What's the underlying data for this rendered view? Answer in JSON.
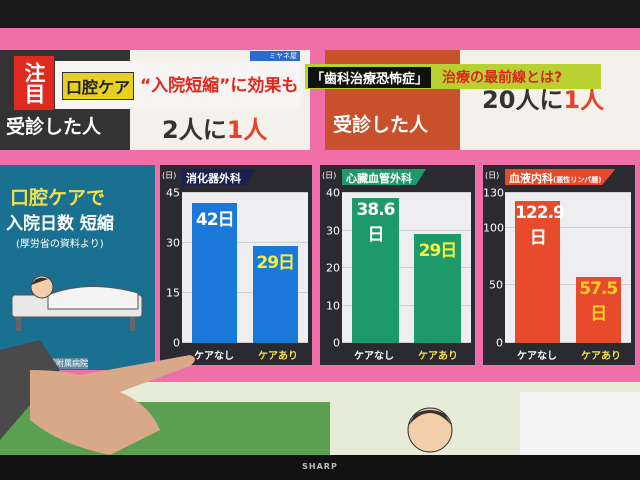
{
  "tv_brand": "SHARP",
  "top_band": {
    "left_text": "受診した人",
    "left_value_a": "2人に",
    "left_value_b": "1人",
    "right_text": "受診した人",
    "right_value_a": "20人に",
    "right_value_b": "1人"
  },
  "caption": {
    "badge": "注目",
    "keyword": "口腔ケア",
    "headline": "“入院短縮”に効果も",
    "show_logo": "ミヤネ屋",
    "topic_box": "「歯科治療恐怖症」",
    "topic_text": "治療の最前線とは?"
  },
  "side_panel": {
    "line1": "口腔ケアで",
    "line2": "入院日数 短縮",
    "source": "(厚労省の資料より)",
    "footer": "学部附属病院"
  },
  "colors": {
    "blue": "#1a78d8",
    "green": "#1e9a6a",
    "red": "#e84a2c",
    "teal": "#1a7090"
  },
  "chart_data": [
    {
      "type": "bar",
      "title": "消化器外科",
      "unit": "(日)",
      "ylim": [
        0,
        45
      ],
      "yticks": [
        0,
        15,
        30,
        45
      ],
      "categories": [
        "ケアなし",
        "ケアあり"
      ],
      "values": [
        42,
        29
      ],
      "labels": [
        "42日",
        "29日"
      ],
      "color": "#1a78d8"
    },
    {
      "type": "bar",
      "title": "心臓血管外科",
      "unit": "(日)",
      "ylim": [
        0,
        40
      ],
      "yticks": [
        0,
        10,
        20,
        30,
        40
      ],
      "categories": [
        "ケアなし",
        "ケアあり"
      ],
      "values": [
        38.6,
        29
      ],
      "labels": [
        "38.6日",
        "29日"
      ],
      "color": "#1e9a6a"
    },
    {
      "type": "bar",
      "title": "血液内科",
      "subtitle": "(悪性リンパ腫)",
      "unit": "(日)",
      "ylim": [
        0,
        130
      ],
      "yticks": [
        0,
        50,
        100,
        130
      ],
      "categories": [
        "ケアなし",
        "ケアあり"
      ],
      "values": [
        122.9,
        57.5
      ],
      "labels": [
        "122.9日",
        "57.5日"
      ],
      "color": "#e84a2c"
    }
  ]
}
